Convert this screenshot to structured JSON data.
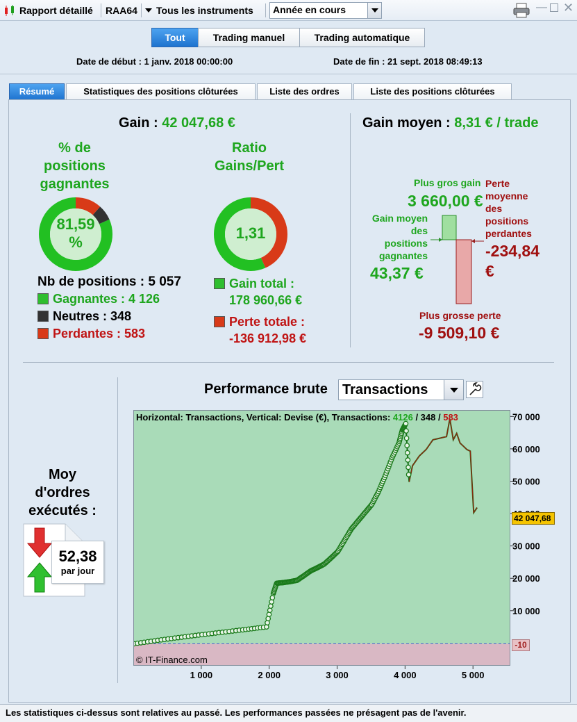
{
  "window": {
    "title": "Rapport détaillé",
    "account": "RAA64",
    "instruments_filter": "Tous les instruments",
    "period_select": "Année en cours"
  },
  "mode_buttons": [
    "Tout",
    "Trading manuel",
    "Trading automatique"
  ],
  "dates": {
    "start": "Date de début : 1 janv. 2018 00:00:00",
    "end": "Date de fin : 21 sept. 2018 08:49:13"
  },
  "tabs": [
    "Résumé",
    "Statistiques des positions clôturées",
    "Liste des ordres",
    "Liste des positions clôturées"
  ],
  "summary": {
    "gain_label": "Gain :",
    "gain_value": "42 047,68 €",
    "pct_title": [
      "% de",
      "positions",
      "gagnantes"
    ],
    "pct_value_line1": "81,59",
    "pct_value_line2": "%",
    "ratio_title": [
      "Ratio",
      "Gains/Pert"
    ],
    "ratio_value": "1,31",
    "nb_positions": "Nb de positions : 5 057",
    "gagnantes": "Gagnantes : 4 126",
    "neutres": "Neutres : 348",
    "perdantes": "Perdantes : 583",
    "gain_total_label": "Gain total :",
    "gain_total_value": "178 960,66 €",
    "perte_totale_label": "Perte totale :",
    "perte_totale_value": "-136 912,98 €",
    "win_fraction": 0.8159,
    "neutral_fraction": 0.0688,
    "loss_fraction": 0.1153,
    "ratio_gain_fraction": 0.5666
  },
  "average": {
    "gain_moyen_label": "Gain moyen :",
    "gain_moyen_value": "8,31 € / trade",
    "plus_gros_gain_label": "Plus gros gain",
    "plus_gros_gain_value": "3 660,00 €",
    "gain_moyen_pos_label": [
      "Gain moyen",
      "des",
      "positions",
      "gagnantes"
    ],
    "gain_moyen_pos_value": "43,37 €",
    "perte_moyenne_label": [
      "Perte",
      "moyenne",
      "des",
      "positions",
      "perdantes"
    ],
    "perte_moyenne_value_1": "-234,84",
    "perte_moyenne_value_2": "€",
    "plus_grosse_perte_label": "Plus grosse perte",
    "plus_grosse_perte_value": "-9 509,10 €"
  },
  "orders": {
    "title": [
      "Moy",
      "d'ordres",
      "exécutés :"
    ],
    "value": "52,38",
    "unit": "par jour"
  },
  "performance": {
    "title": "Performance brute",
    "select": "Transactions",
    "header_text": "Horizontal: Transactions, Vertical: Devise (€), Transactions:",
    "header_wins": "4126",
    "header_sep1": " / ",
    "header_neutral": "348",
    "header_sep2": " / ",
    "header_losses": "583",
    "watermark": "© IT-Finance.com",
    "current_label": "42 047,68",
    "zero_label": "-10"
  },
  "chart_data": {
    "type": "line",
    "xlabel": "",
    "ylabel": "",
    "x_ticks": [
      1000,
      2000,
      3000,
      4000,
      5000
    ],
    "x_tick_labels": [
      "1 000",
      "2 000",
      "3 000",
      "4 000",
      "5 000"
    ],
    "y_ticks": [
      10000,
      20000,
      30000,
      40000,
      50000,
      60000,
      70000
    ],
    "y_tick_labels": [
      "10 000",
      "20 000",
      "30 000",
      "40 000",
      "50 000",
      "60 000",
      "70 000"
    ],
    "xlim": [
      0,
      5550
    ],
    "ylim": [
      -7000,
      72000
    ],
    "win_x_end": 4050,
    "series": [
      {
        "x": [
          0,
          400,
          800,
          1200,
          1600,
          1950,
          2050,
          2100,
          2200,
          2300,
          2400,
          2500,
          2600,
          2700,
          2800,
          2900,
          3000,
          3100,
          3200,
          3300,
          3400,
          3500,
          3600,
          3700,
          3800,
          3900,
          3950,
          4000,
          4050,
          4100,
          4200,
          4300,
          4400,
          4500,
          4600,
          4650,
          4700,
          4750,
          4800,
          4850,
          4900,
          4950,
          5000,
          5050
        ],
        "y": [
          0,
          1200,
          2300,
          3300,
          4300,
          5200,
          15500,
          18700,
          18900,
          19200,
          19600,
          21000,
          22500,
          23500,
          24600,
          26500,
          28500,
          32000,
          35500,
          38000,
          40500,
          43000,
          47000,
          52000,
          57500,
          62000,
          66000,
          68000,
          50000,
          55000,
          58000,
          60000,
          63000,
          63500,
          64000,
          69500,
          63000,
          65000,
          62000,
          61000,
          60000,
          59500,
          40500,
          42047
        ]
      }
    ]
  }
}
